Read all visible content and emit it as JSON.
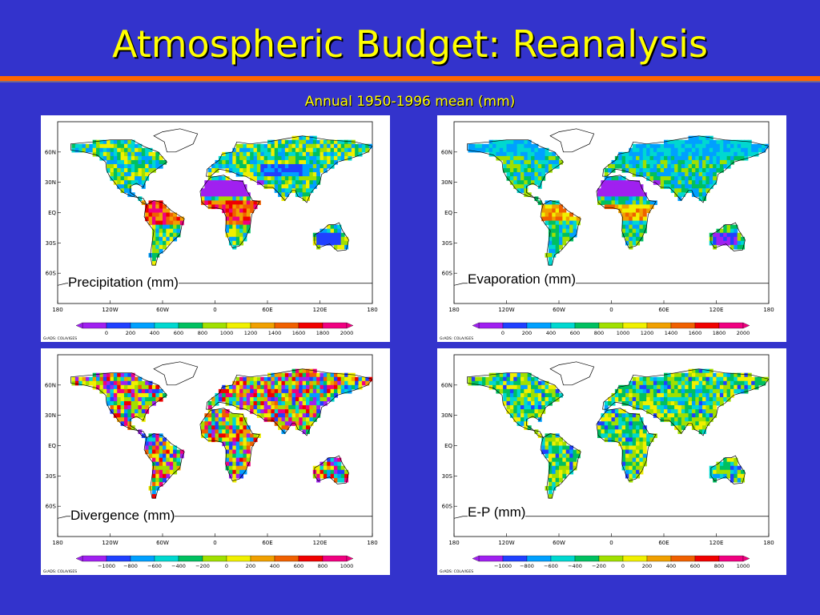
{
  "title": "Atmospheric Budget: Reanalysis",
  "subtitle": "Annual 1950-1996 mean (mm)",
  "lat_labels": [
    "60N",
    "30N",
    "EQ",
    "30S",
    "60S"
  ],
  "lon_labels": [
    "180",
    "120W",
    "60W",
    "0",
    "60E",
    "120E",
    "180"
  ],
  "credit": "GrADS: COLA/IGES",
  "panels": [
    {
      "label": "Precipitation (mm)",
      "scale": [
        "0",
        "200",
        "400",
        "600",
        "800",
        "1000",
        "1200",
        "1400",
        "1600",
        "1800",
        "2000"
      ],
      "palette": "precip"
    },
    {
      "label": "Evaporation (mm)",
      "scale": [
        "0",
        "200",
        "400",
        "600",
        "800",
        "1000",
        "1200",
        "1400",
        "1600",
        "1800",
        "2000"
      ],
      "palette": "evap"
    },
    {
      "label": "Divergence (mm)",
      "scale": [
        "−1000",
        "−800",
        "−600",
        "−400",
        "−200",
        "0",
        "200",
        "400",
        "600",
        "800",
        "1000"
      ],
      "palette": "div"
    },
    {
      "label": "E-P (mm)",
      "scale": [
        "−1000",
        "−800",
        "−600",
        "−400",
        "−200",
        "0",
        "200",
        "400",
        "600",
        "800",
        "1000"
      ],
      "palette": "ep"
    }
  ],
  "colors": [
    "#a020f0",
    "#2040ff",
    "#00a0ff",
    "#00d8d0",
    "#00c060",
    "#a0e000",
    "#f0f000",
    "#f0a000",
    "#f06000",
    "#f00000",
    "#f00080"
  ]
}
